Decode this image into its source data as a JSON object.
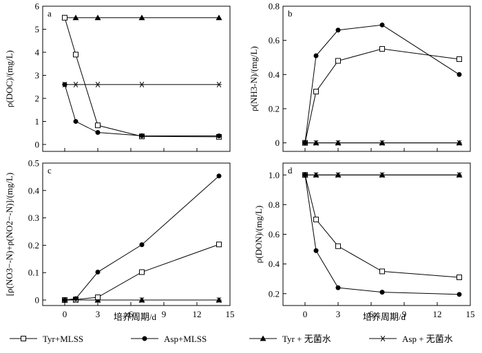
{
  "figure": {
    "xlabel": "培养周期/d",
    "legend": [
      "Tyr+MLSS",
      "Asp+MLSS",
      "Tyr + 无菌水",
      "Asp + 无菌水"
    ]
  },
  "chart_data": [
    {
      "type": "line",
      "panel": "a",
      "ylabel": "ρ(DOC)/(mg/L)",
      "xlabel": "",
      "x": [
        0,
        1,
        3,
        7,
        14
      ],
      "xlim": [
        -2,
        15
      ],
      "ylim": [
        -0.3,
        6
      ],
      "xticks": [
        0,
        3,
        6,
        9,
        12,
        15
      ],
      "yticks": [
        0,
        1,
        2,
        3,
        4,
        5,
        6
      ],
      "ytick_labels": [
        "0",
        "1",
        "2",
        "3",
        "4",
        "5",
        "6"
      ],
      "show_xticklabels": false,
      "series": [
        {
          "name": "Tyr+MLSS",
          "marker": "open-square",
          "values": [
            5.5,
            3.9,
            0.83,
            0.35,
            0.33
          ]
        },
        {
          "name": "Asp+MLSS",
          "marker": "filled-circle",
          "values": [
            2.6,
            1.0,
            0.52,
            0.38,
            0.37
          ]
        },
        {
          "name": "Tyr + 无菌水",
          "marker": "filled-triangle",
          "values": [
            5.5,
            5.5,
            5.5,
            5.5,
            5.5
          ]
        },
        {
          "name": "Asp + 无菌水",
          "marker": "asterisk",
          "values": [
            2.6,
            2.6,
            2.6,
            2.6,
            2.6
          ]
        }
      ]
    },
    {
      "type": "line",
      "panel": "b",
      "ylabel": "ρ(NH3-N)/(mg/L)",
      "xlabel": "",
      "x": [
        0,
        1,
        3,
        7,
        14
      ],
      "xlim": [
        -2,
        15
      ],
      "ylim": [
        -0.05,
        0.8
      ],
      "xticks": [
        0,
        3,
        6,
        9,
        12,
        15
      ],
      "yticks": [
        0,
        0.2,
        0.4,
        0.6,
        0.8
      ],
      "ytick_labels": [
        "0",
        "0.2",
        "0.4",
        "0.6",
        "0.8"
      ],
      "show_xticklabels": false,
      "series": [
        {
          "name": "Tyr+MLSS",
          "marker": "open-square",
          "values": [
            0,
            0.3,
            0.48,
            0.55,
            0.49
          ]
        },
        {
          "name": "Asp+MLSS",
          "marker": "filled-circle",
          "values": [
            0,
            0.51,
            0.66,
            0.69,
            0.4
          ]
        },
        {
          "name": "Tyr + 无菌水",
          "marker": "filled-triangle",
          "values": [
            0,
            0,
            0,
            0,
            0
          ]
        },
        {
          "name": "Asp + 无菌水",
          "marker": "asterisk",
          "values": [
            0,
            0,
            0,
            0,
            0
          ]
        }
      ]
    },
    {
      "type": "line",
      "panel": "c",
      "ylabel": "[ρ(NO3−-N)+ρ(NO2−-N)]/(mg/L)",
      "xlabel": "培养周期/d",
      "x": [
        0,
        1,
        3,
        7,
        14
      ],
      "xlim": [
        -2,
        15
      ],
      "ylim": [
        -0.02,
        0.5
      ],
      "xticks": [
        0,
        3,
        6,
        9,
        12,
        15
      ],
      "yticks": [
        0,
        0.1,
        0.2,
        0.3,
        0.4,
        0.5
      ],
      "ytick_labels": [
        "0",
        "0.1",
        "0.2",
        "0.3",
        "0.4",
        "0.5"
      ],
      "show_xticklabels": true,
      "series": [
        {
          "name": "Tyr+MLSS",
          "marker": "open-square",
          "values": [
            0,
            0.002,
            0.01,
            0.102,
            0.203
          ]
        },
        {
          "name": "Asp+MLSS",
          "marker": "filled-circle",
          "values": [
            0,
            0.005,
            0.102,
            0.202,
            0.453
          ]
        },
        {
          "name": "Tyr + 无菌水",
          "marker": "filled-triangle",
          "values": [
            0,
            0,
            0,
            0,
            0
          ]
        },
        {
          "name": "Asp + 无菌水",
          "marker": "asterisk",
          "values": [
            0,
            0,
            0,
            0,
            0
          ]
        }
      ]
    },
    {
      "type": "line",
      "panel": "d",
      "ylabel": "ρ(DON)/(mg/L)",
      "xlabel": "培养周期/d",
      "x": [
        0,
        1,
        3,
        7,
        14
      ],
      "xlim": [
        -2,
        15
      ],
      "ylim": [
        0.12,
        1.08
      ],
      "xticks": [
        0,
        3,
        6,
        9,
        12,
        15
      ],
      "yticks": [
        0.2,
        0.4,
        0.6,
        0.8,
        1.0
      ],
      "ytick_labels": [
        "0.2",
        "0.4",
        "0.6",
        "0.8",
        "1.0"
      ],
      "show_xticklabels": true,
      "series": [
        {
          "name": "Tyr+MLSS",
          "marker": "open-square",
          "values": [
            1.0,
            0.7,
            0.52,
            0.35,
            0.31
          ]
        },
        {
          "name": "Asp+MLSS",
          "marker": "filled-circle",
          "values": [
            1.0,
            0.49,
            0.24,
            0.21,
            0.195
          ]
        },
        {
          "name": "Tyr + 无菌水",
          "marker": "filled-triangle",
          "values": [
            1.0,
            1.0,
            1.0,
            1.0,
            1.0
          ]
        },
        {
          "name": "Asp + 无菌水",
          "marker": "asterisk",
          "values": [
            1.0,
            1.0,
            1.0,
            1.0,
            1.0
          ]
        }
      ]
    }
  ]
}
